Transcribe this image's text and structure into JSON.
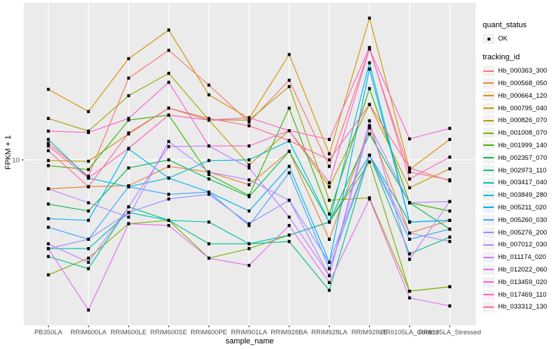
{
  "chart_data": {
    "type": "line",
    "title": "",
    "xlabel": "sample_name",
    "ylabel": "FPKM + 1",
    "y_scale": "log10",
    "y_ticks": [
      {
        "label": "10",
        "value": 10
      }
    ],
    "ylim": [
      0.95,
      95
    ],
    "grid": "on",
    "legend_position": "right",
    "panel_bg": "#EBEBEB",
    "grid_color": "#FFFFFF",
    "point_color": "#000000",
    "tick_color": "#333333",
    "tick_label_color": "#4D4D4D",
    "categories": [
      "PB350LA",
      "RRIM600LA",
      "RRIM600LE",
      "RRIM600SE",
      "RRIM600PE",
      "RRIM901LA",
      "RRIM928BA",
      "RRIM928LA",
      "RRIM928LE",
      "RRII105LA_Control",
      "RRII105LA_Stressed"
    ],
    "legend": {
      "quant_status_title": "quant_status",
      "quant_status_items": [
        {
          "label": "OK",
          "symbol": "point"
        }
      ],
      "tracking_id_title": "tracking_id"
    },
    "series": [
      {
        "name": "Hb_000363_300",
        "color": "#F8766D",
        "values": [
          12.7,
          7.9,
          32.3,
          48.1,
          29.2,
          17.2,
          31.3,
          9.1,
          49.1,
          8.4,
          7.5
        ]
      },
      {
        "name": "Hb_000568_050",
        "color": "#EA8331",
        "values": [
          6.6,
          6.8,
          6.9,
          9.1,
          8.4,
          7.0,
          11.3,
          3.2,
          15.8,
          3.5,
          4.2
        ]
      },
      {
        "name": "Hb_000664_120",
        "color": "#D89000",
        "values": [
          27.5,
          20.0,
          42.7,
          64.4,
          25.4,
          18.1,
          45.3,
          10.9,
          76.3,
          8.7,
          13.4
        ]
      },
      {
        "name": "Hb_000795_040",
        "color": "#C09B00",
        "values": [
          9.9,
          9.8,
          14.5,
          21.0,
          17.7,
          9.3,
          15.2,
          6.8,
          22.1,
          6.7,
          8.8
        ]
      },
      {
        "name": "Hb_000826_070",
        "color": "#A3A500",
        "values": [
          18.1,
          15.1,
          25.1,
          34.6,
          17.7,
          17.7,
          28.6,
          5.6,
          5.8,
          1.52,
          1.62
        ]
      },
      {
        "name": "Hb_001008_070",
        "color": "#7CAE00",
        "values": [
          1.92,
          2.44,
          4.0,
          4.2,
          2.44,
          2.8,
          3.4,
          4.1,
          9.7,
          1.52,
          1.62
        ]
      },
      {
        "name": "Hb_001999_140",
        "color": "#39B600",
        "values": [
          9.2,
          8.7,
          17.7,
          19.0,
          8.1,
          6.0,
          21.0,
          4.6,
          27.8,
          5.4,
          4.8
        ]
      },
      {
        "name": "Hb_002357_070",
        "color": "#00BB4E",
        "values": [
          5.3,
          4.8,
          8.9,
          10.0,
          7.6,
          5.9,
          11.3,
          4.1,
          14.5,
          5.4,
          3.7
        ]
      },
      {
        "name": "Hb_002973_110",
        "color": "#00C087",
        "values": [
          2.5,
          2.1,
          5.1,
          4.2,
          3.0,
          3.0,
          3.1,
          1.54,
          10.7,
          2.6,
          3.3
        ]
      },
      {
        "name": "Hb_003417_040",
        "color": "#00C0B2",
        "values": [
          2.8,
          2.8,
          4.7,
          4.2,
          4.1,
          3.0,
          3.4,
          4.1,
          10.7,
          4.1,
          4.2
        ]
      },
      {
        "name": "Hb_003849_280",
        "color": "#00BCD8",
        "values": [
          13.4,
          7.7,
          6.8,
          7.7,
          9.9,
          10.0,
          13.1,
          4.1,
          40.2,
          4.1,
          4.2
        ]
      },
      {
        "name": "Hb_005211_020",
        "color": "#00B0F6",
        "values": [
          4.3,
          4.2,
          11.7,
          7.7,
          6.3,
          4.8,
          9.1,
          2.3,
          36.8,
          4.1,
          4.2
        ]
      },
      {
        "name": "Hb_005260_030",
        "color": "#3DA1FF",
        "values": [
          3.8,
          3.2,
          6.8,
          6.1,
          6.3,
          3.9,
          8.3,
          2.1,
          10.7,
          3.2,
          3.7
        ]
      },
      {
        "name": "Hb_005276_200",
        "color": "#9590FF",
        "values": [
          2.8,
          3.2,
          4.7,
          5.7,
          6.1,
          4.0,
          5.6,
          2.3,
          10.7,
          3.5,
          3.1
        ]
      },
      {
        "name": "Hb_007012_030",
        "color": "#AE87FF",
        "values": [
          6.6,
          5.4,
          4.4,
          13.0,
          8.4,
          7.5,
          5.6,
          1.9,
          16.3,
          5.4,
          5.5
        ]
      },
      {
        "name": "Hb_011174_020",
        "color": "#C77CFF",
        "values": [
          3.0,
          2.3,
          5.1,
          12.1,
          12.2,
          8.9,
          4.4,
          1.9,
          17.5,
          2.4,
          5.5
        ]
      },
      {
        "name": "Hb_012022_060",
        "color": "#E76BF3",
        "values": [
          2.8,
          1.16,
          4.0,
          3.9,
          2.44,
          2.2,
          3.9,
          1.72,
          5.7,
          1.38,
          1.23
        ]
      },
      {
        "name": "Hb_013459_020",
        "color": "#FB61D7",
        "values": [
          15.1,
          14.8,
          18.1,
          30.4,
          12.2,
          12.2,
          15.2,
          7.2,
          49.1,
          13.5,
          15.7
        ]
      },
      {
        "name": "Hb_017469_110",
        "color": "#FF62BC",
        "values": [
          12.2,
          7.7,
          11.8,
          19.0,
          17.7,
          18.3,
          15.2,
          13.4,
          50.1,
          7.6,
          10.4
        ]
      },
      {
        "name": "Hb_033312_130",
        "color": "#FF6A98",
        "values": [
          11.4,
          6.8,
          14.7,
          21.0,
          18.1,
          16.3,
          13.2,
          10.0,
          22.1,
          8.9,
          7.4
        ]
      }
    ]
  }
}
